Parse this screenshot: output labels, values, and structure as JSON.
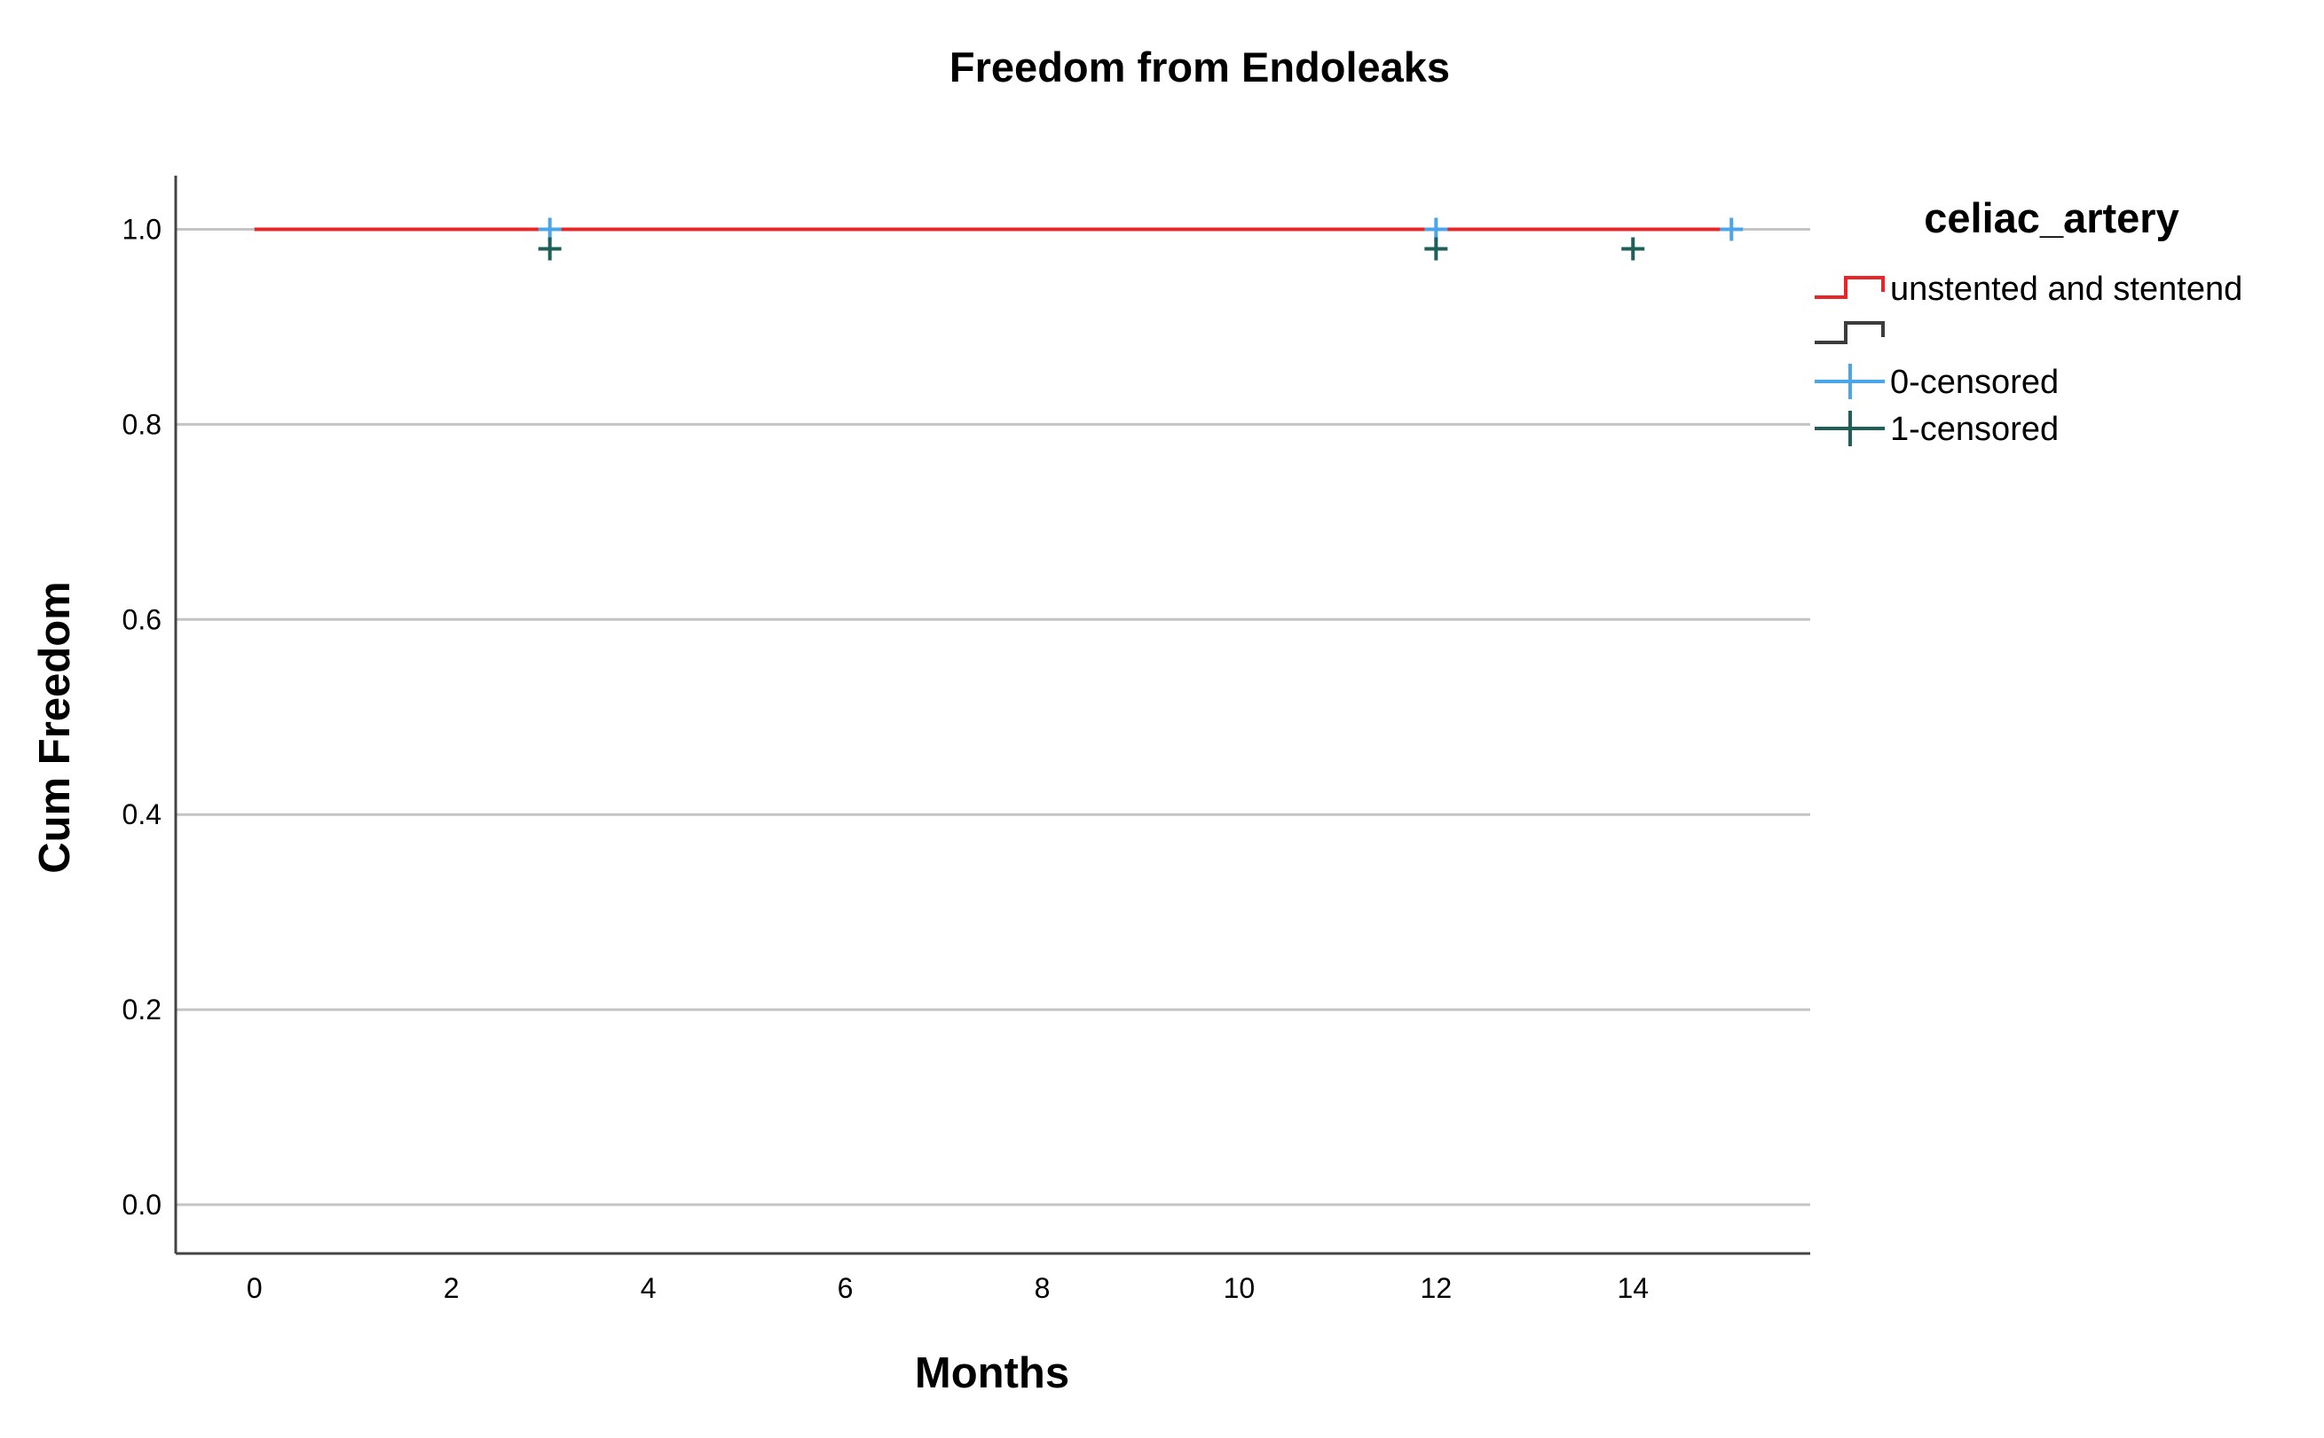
{
  "chart_data": {
    "type": "line",
    "title": "Freedom from Endoleaks",
    "xlabel": "Months",
    "ylabel": "Cum Freedom",
    "xlim": [
      -0.8,
      15.8
    ],
    "ylim": [
      -0.05,
      1.055
    ],
    "xticks": [
      0,
      2,
      4,
      6,
      8,
      10,
      12,
      14
    ],
    "yticks": [
      0.0,
      0.2,
      0.4,
      0.6,
      0.8,
      1.0
    ],
    "xtick_labels": [
      "0",
      "2",
      "4",
      "6",
      "8",
      "10",
      "12",
      "14"
    ],
    "ytick_labels": [
      "0.0",
      "0.2",
      "0.4",
      "0.6",
      "0.8",
      "1.0"
    ],
    "grid": "horizontal",
    "legend": {
      "title": "celiac_artery",
      "position": "right",
      "entries": [
        {
          "label": "unstented and stentend",
          "marker": "step",
          "color": "#e8262a"
        },
        {
          "label": "",
          "marker": "step",
          "color": "#3c3c3c"
        },
        {
          "label": "0-censored",
          "marker": "plus",
          "color": "#4aa6e8"
        },
        {
          "label": "1-censored",
          "marker": "plus",
          "color": "#1f5f5a"
        }
      ]
    },
    "series": [
      {
        "name": "unstented and stentend",
        "color": "#e8262a",
        "x": [
          0,
          15
        ],
        "y": [
          1.0,
          1.0
        ]
      }
    ],
    "censored": [
      {
        "name": "0-censored",
        "color": "#4aa6e8",
        "x": [
          3,
          12,
          15
        ],
        "y": [
          1.0,
          1.0,
          1.0
        ]
      },
      {
        "name": "1-censored",
        "color": "#1f5f5a",
        "x": [
          3,
          12,
          14
        ],
        "y": [
          0.98,
          0.98,
          0.98
        ]
      }
    ]
  }
}
